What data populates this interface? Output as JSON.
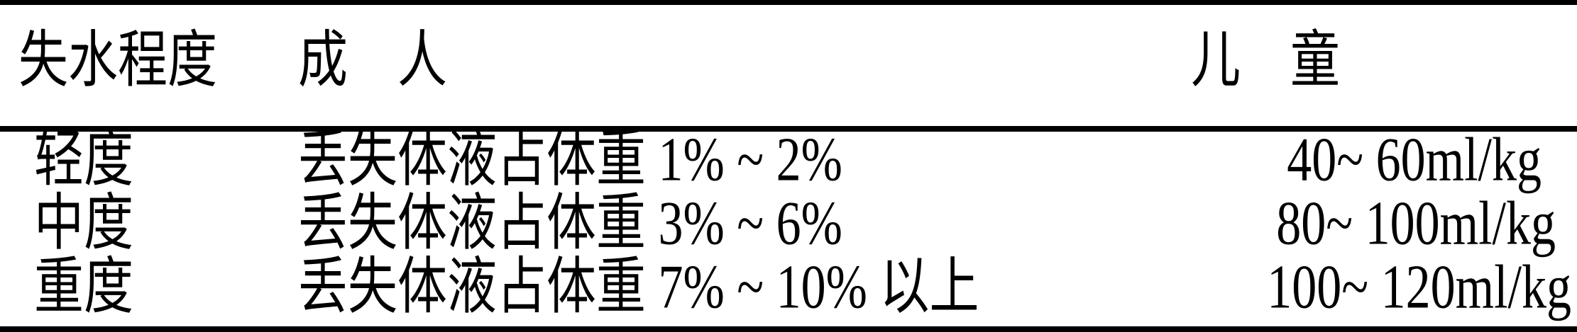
{
  "table": {
    "headers": [
      "失水程度",
      "成　人",
      "儿　童"
    ],
    "rows": [
      {
        "level": "轻度",
        "adult": "丢失体液占体重 1% ~ 2%",
        "child": "40~ 60ml/kg"
      },
      {
        "level": "中度",
        "adult": "丢失体液占体重 3% ~ 6%",
        "child": "80~ 100ml/kg"
      },
      {
        "level": "重度",
        "adult": "丢失体液占体重 7% ~ 10% 以上",
        "child": "100~ 120ml/kg"
      }
    ]
  }
}
